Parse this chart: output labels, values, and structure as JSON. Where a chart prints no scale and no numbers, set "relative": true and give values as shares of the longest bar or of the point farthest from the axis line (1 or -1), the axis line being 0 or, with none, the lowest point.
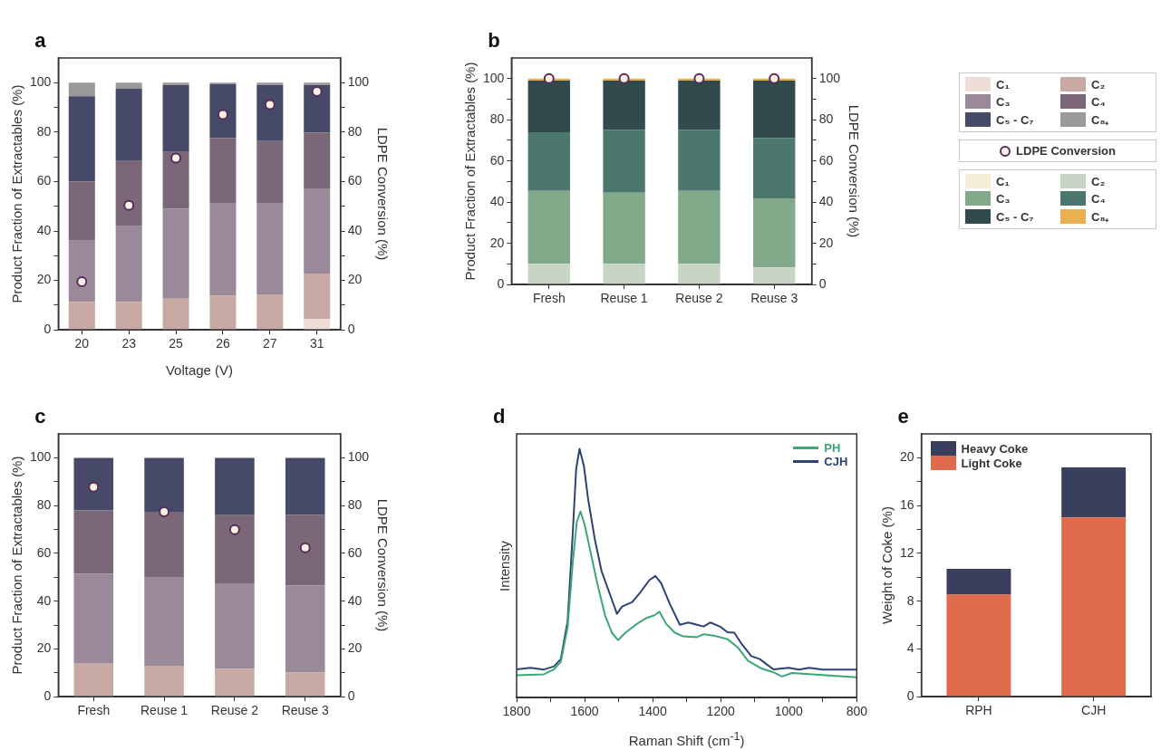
{
  "chart_data": [
    {
      "type": "bar",
      "title": "a",
      "xlabel": "Voltage (V)",
      "ylabel": "Product Fraction of Extractables (%)",
      "y2label": "LDPE Conversion (%)",
      "categories": [
        "20",
        "23",
        "25",
        "26",
        "27",
        "31"
      ],
      "stacked": true,
      "legend": "right",
      "grid": false,
      "ylim": [
        0,
        110
      ],
      "yticks": [
        0,
        {
          "value": 10,
          "label": null
        },
        20,
        {
          "value": 30,
          "label": null
        },
        40,
        {
          "value": 50,
          "label": null
        },
        60,
        {
          "value": 70,
          "label": null
        },
        80,
        {
          "value": 90,
          "label": null
        },
        100
      ],
      "y2lim": [
        0,
        110
      ],
      "y2ticks": [
        0,
        {
          "value": 10,
          "label": null
        },
        20,
        {
          "value": 30,
          "label": null
        },
        40,
        {
          "value": 50,
          "label": null
        },
        60,
        {
          "value": 70,
          "label": null
        },
        80,
        {
          "value": 90,
          "label": null
        },
        100
      ],
      "series": [
        {
          "name": "C₁",
          "color": "#eedcd6",
          "values": [
            0,
            0,
            0,
            0,
            0,
            4.3
          ]
        },
        {
          "name": "C₂",
          "color": "#c9a9a3",
          "values": [
            11.3,
            11.3,
            12.6,
            13.9,
            14.4,
            18.5
          ]
        },
        {
          "name": "C₃",
          "color": "#9a8a99",
          "values": [
            24.8,
            30.9,
            36.5,
            37.2,
            36.7,
            34.2
          ]
        },
        {
          "name": "C₄",
          "color": "#7a6878",
          "values": [
            23.9,
            26.1,
            22.9,
            26.5,
            25.3,
            22.8
          ]
        },
        {
          "name": "C₅ - C₇",
          "color": "#464a68",
          "values": [
            34.5,
            29.2,
            27.0,
            21.9,
            22.6,
            19.2
          ]
        },
        {
          "name": "C₈₊",
          "color": "#9a9a9a",
          "values": [
            5.5,
            2.5,
            1.0,
            0.5,
            1.0,
            1.0
          ]
        },
        {
          "name": "LDPE Conversion",
          "type": "scatter",
          "axis": "y2",
          "marker": "circle",
          "color": "#5a2a5a",
          "x": [
            "20",
            "23",
            "25",
            "26",
            "27",
            "31"
          ],
          "values": [
            19.5,
            50.4,
            69.5,
            87.1,
            91.1,
            96.4
          ]
        }
      ]
    },
    {
      "type": "bar",
      "title": "b",
      "ylabel": "Product Fraction of Extractables (%)",
      "y2label": "LDPE Conversion (%)",
      "categories": [
        "Fresh",
        "Reuse 1",
        "Reuse 2",
        "Reuse 3"
      ],
      "stacked": true,
      "legend": "right",
      "grid": false,
      "ylim": [
        0,
        110
      ],
      "yticks": [
        0,
        {
          "value": 10,
          "label": null
        },
        20,
        {
          "value": 30,
          "label": null
        },
        40,
        {
          "value": 50,
          "label": null
        },
        60,
        {
          "value": 70,
          "label": null
        },
        80,
        {
          "value": 90,
          "label": null
        },
        100
      ],
      "y2lim": [
        0,
        110
      ],
      "y2ticks": [
        0,
        {
          "value": 10,
          "label": null
        },
        20,
        {
          "value": 30,
          "label": null
        },
        40,
        {
          "value": 50,
          "label": null
        },
        60,
        {
          "value": 70,
          "label": null
        },
        80,
        {
          "value": 90,
          "label": null
        },
        100
      ],
      "series": [
        {
          "name": "C₁",
          "color": "#f3ecd7",
          "values": [
            0,
            0,
            0,
            0
          ]
        },
        {
          "name": "C₂",
          "color": "#c8d4c4",
          "values": [
            10.1,
            10.1,
            10.1,
            8.3
          ]
        },
        {
          "name": "C₃",
          "color": "#82a98a",
          "values": [
            35.4,
            34.5,
            35.4,
            33.5
          ]
        },
        {
          "name": "C₄",
          "color": "#4b776d",
          "values": [
            28.4,
            30.5,
            29.6,
            29.3
          ]
        },
        {
          "name": "C₅ - C₇",
          "color": "#304a4e",
          "values": [
            25.1,
            23.9,
            23.9,
            27.9
          ]
        },
        {
          "name": "C₈₊",
          "color": "#e8b04e",
          "values": [
            1,
            1,
            1,
            1
          ]
        },
        {
          "type": "scatter",
          "axis": "y2",
          "marker": "circle",
          "color": "#5a2a5a",
          "x": [
            "Fresh",
            "Reuse 1",
            "Reuse 2",
            "Reuse 3"
          ],
          "values": [
            100,
            100,
            100,
            100
          ]
        }
      ]
    },
    {
      "type": "bar",
      "title": "c",
      "ylabel": "Product Fraction of Extractables (%)",
      "y2label": "LDPE Conversion (%)",
      "categories": [
        "Fresh",
        "Reuse 1",
        "Reuse 2",
        "Reuse 3"
      ],
      "stacked": true,
      "grid": false,
      "ylim": [
        0,
        110
      ],
      "yticks": [
        0,
        {
          "value": 10,
          "label": null
        },
        20,
        {
          "value": 30,
          "label": null
        },
        40,
        {
          "value": 50,
          "label": null
        },
        60,
        {
          "value": 70,
          "label": null
        },
        80,
        {
          "value": 90,
          "label": null
        },
        100
      ],
      "y2lim": [
        0,
        110
      ],
      "y2ticks": [
        0,
        {
          "value": 10,
          "label": null
        },
        20,
        {
          "value": 30,
          "label": null
        },
        40,
        {
          "value": 50,
          "label": null
        },
        60,
        {
          "value": 70,
          "label": null
        },
        80,
        {
          "value": 90,
          "label": null
        },
        100
      ],
      "series": [
        {
          "color": "#c9a9a3",
          "values": [
            13.8,
            13.0,
            11.7,
            10.1
          ]
        },
        {
          "color": "#9a8a99",
          "values": [
            37.7,
            36.8,
            35.8,
            36.4
          ]
        },
        {
          "color": "#7a6878",
          "values": [
            26.6,
            27.6,
            28.5,
            29.7
          ]
        },
        {
          "color": "#464a68",
          "values": [
            21.9,
            22.6,
            24.0,
            23.8
          ]
        },
        {
          "type": "scatter",
          "axis": "y2",
          "marker": "circle",
          "color": "#5a2a5a",
          "x": [
            "Fresh",
            "Reuse 1",
            "Reuse 2",
            "Reuse 3"
          ],
          "values": [
            87.7,
            77.4,
            69.9,
            62.3
          ]
        }
      ]
    },
    {
      "type": "line",
      "title": "d",
      "xlabel": "Raman Shift (cm$^{-1}$)",
      "ylabel": "Intensity",
      "relative": true,
      "legend": "top right",
      "grid": false,
      "marker": "none",
      "xlim": [
        1800,
        800
      ],
      "xticks": [
        1800,
        {
          "value": 1700,
          "label": null
        },
        1600,
        {
          "value": 1500,
          "label": null
        },
        1400,
        {
          "value": 1300,
          "label": null
        },
        1200,
        {
          "value": 1100,
          "label": null
        },
        1000,
        {
          "value": 900,
          "label": null
        },
        800
      ],
      "series": [
        {
          "name": "PH",
          "color": "#3aa876",
          "x": [
            1800,
            1720,
            1690,
            1670,
            1650,
            1635,
            1623,
            1612,
            1600,
            1585,
            1565,
            1540,
            1520,
            1502,
            1480,
            1450,
            1420,
            1395,
            1380,
            1360,
            1335,
            1310,
            1270,
            1250,
            1220,
            1180,
            1150,
            1120,
            1080,
            1045,
            1020,
            990,
            930,
            800
          ],
          "values": [
            0.09,
            0.094,
            0.114,
            0.143,
            0.284,
            0.542,
            0.707,
            0.748,
            0.695,
            0.601,
            0.472,
            0.331,
            0.261,
            0.231,
            0.261,
            0.293,
            0.319,
            0.331,
            0.345,
            0.296,
            0.261,
            0.246,
            0.243,
            0.255,
            0.249,
            0.235,
            0.202,
            0.149,
            0.117,
            0.102,
            0.085,
            0.099,
            0.094,
            0.082
          ]
        },
        {
          "name": "CJH",
          "color": "#2e4373",
          "x": [
            1800,
            1760,
            1720,
            1690,
            1670,
            1650,
            1635,
            1625,
            1615,
            1602,
            1590,
            1570,
            1550,
            1525,
            1505,
            1490,
            1460,
            1435,
            1410,
            1392,
            1375,
            1350,
            1320,
            1295,
            1270,
            1250,
            1230,
            1200,
            1180,
            1160,
            1140,
            1110,
            1085,
            1065,
            1045,
            1000,
            970,
            940,
            900,
            800
          ],
          "values": [
            0.114,
            0.12,
            0.113,
            0.126,
            0.155,
            0.308,
            0.66,
            0.918,
            1.0,
            0.93,
            0.8,
            0.636,
            0.507,
            0.413,
            0.337,
            0.366,
            0.384,
            0.425,
            0.472,
            0.489,
            0.46,
            0.378,
            0.293,
            0.302,
            0.293,
            0.286,
            0.302,
            0.284,
            0.263,
            0.261,
            0.219,
            0.167,
            0.155,
            0.134,
            0.114,
            0.12,
            0.113,
            0.12,
            0.113,
            0.113
          ]
        }
      ]
    },
    {
      "type": "bar",
      "title": "e",
      "ylabel": "Weight of Coke (%)",
      "categories": [
        "RPH",
        "CJH"
      ],
      "stacked": true,
      "legend": "top left",
      "grid": false,
      "ylim": [
        0,
        22
      ],
      "yticks": [
        0,
        {
          "value": 2,
          "label": null
        },
        4,
        {
          "value": 6,
          "label": null
        },
        8,
        {
          "value": 10,
          "label": null
        },
        12,
        {
          "value": 14,
          "label": null
        },
        16,
        {
          "value": 18,
          "label": null
        },
        20
      ],
      "series": [
        {
          "name": "Light Coke",
          "color": "#e06a4c",
          "values": [
            8.55,
            15.0
          ]
        },
        {
          "name": "Heavy Coke",
          "color": "#3b3f5e",
          "values": [
            2.15,
            4.2
          ]
        }
      ]
    }
  ]
}
